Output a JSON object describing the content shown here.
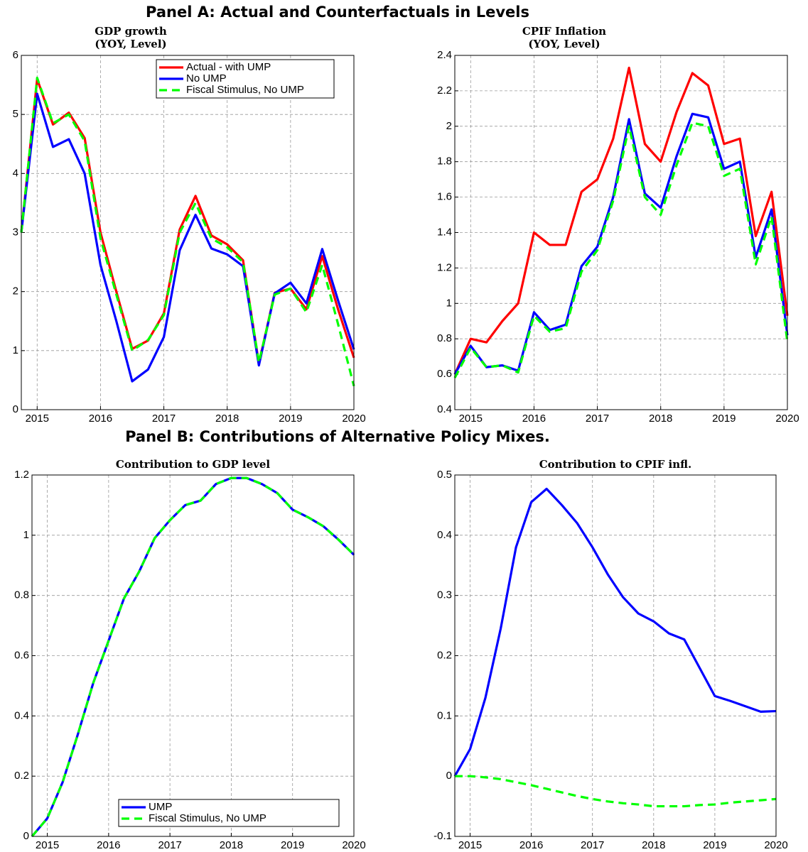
{
  "panel_titles": [
    "Panel A: Actual and Counterfactuals in Levels",
    "Panel B: Contributions of Alternative Policy Mixes."
  ],
  "chart_data": [
    {
      "type": "line",
      "title": "GDP growth",
      "subtitle": "(YOY, Level)",
      "grid": true,
      "legend": "upper right",
      "x": [
        2014.75,
        2015,
        2015.25,
        2015.5,
        2015.75,
        2016,
        2016.25,
        2016.5,
        2016.75,
        2017,
        2017.25,
        2017.5,
        2017.75,
        2018,
        2018.25,
        2018.5,
        2018.75,
        2019,
        2019.25,
        2019.5,
        2019.75,
        2020
      ],
      "xlim": [
        2014.75,
        2020
      ],
      "xticks": [
        2015,
        2016,
        2017,
        2018,
        2019,
        2020
      ],
      "ylim": [
        0,
        6
      ],
      "yticks": [
        0,
        1,
        2,
        3,
        4,
        5,
        6
      ],
      "series": [
        {
          "name": "Actual - with UMP",
          "color": "#ff0000",
          "style": "solid",
          "values": [
            3.0,
            5.6,
            4.83,
            5.03,
            4.6,
            3.0,
            2.0,
            1.03,
            1.17,
            1.63,
            3.05,
            3.62,
            2.95,
            2.8,
            2.53,
            0.78,
            1.98,
            2.05,
            1.7,
            2.6,
            1.7,
            0.88
          ]
        },
        {
          "name": "No UMP",
          "color": "#0000ff",
          "style": "solid",
          "values": [
            3.0,
            5.35,
            4.45,
            4.58,
            4.0,
            2.45,
            1.5,
            0.48,
            0.68,
            1.23,
            2.7,
            3.3,
            2.73,
            2.63,
            2.43,
            0.75,
            1.97,
            2.15,
            1.8,
            2.72,
            1.85,
            1.02
          ]
        },
        {
          "name": "Fiscal Stimulus, No UMP",
          "color": "#00ff00",
          "style": "dashed",
          "values": [
            3.0,
            5.62,
            4.85,
            5.0,
            4.55,
            2.9,
            1.95,
            1.0,
            1.18,
            1.6,
            3.0,
            3.5,
            2.9,
            2.75,
            2.5,
            0.8,
            1.95,
            2.05,
            1.65,
            2.45,
            1.45,
            0.4
          ]
        }
      ]
    },
    {
      "type": "line",
      "title": "CPIF Inflation",
      "subtitle": "(YOY, Level)",
      "grid": true,
      "x": [
        2014.75,
        2015,
        2015.25,
        2015.5,
        2015.75,
        2016,
        2016.25,
        2016.5,
        2016.75,
        2017,
        2017.25,
        2017.5,
        2017.75,
        2018,
        2018.25,
        2018.5,
        2018.75,
        2019,
        2019.25,
        2019.5,
        2019.75,
        2020
      ],
      "xlim": [
        2014.75,
        2020
      ],
      "xticks": [
        2015,
        2016,
        2017,
        2018,
        2019,
        2020
      ],
      "ylim": [
        0.4,
        2.4
      ],
      "yticks": [
        0.4,
        0.6,
        0.8,
        1,
        1.2,
        1.4,
        1.6,
        1.8,
        2,
        2.2,
        2.4
      ],
      "series": [
        {
          "color": "#ff0000",
          "style": "solid",
          "values": [
            0.6,
            0.8,
            0.78,
            0.9,
            1.0,
            1.4,
            1.33,
            1.33,
            1.63,
            1.7,
            1.93,
            2.33,
            1.9,
            1.8,
            2.08,
            2.3,
            2.23,
            1.9,
            1.93,
            1.38,
            1.63,
            0.93
          ]
        },
        {
          "color": "#0000ff",
          "style": "solid",
          "values": [
            0.6,
            0.76,
            0.64,
            0.65,
            0.62,
            0.95,
            0.85,
            0.88,
            1.21,
            1.32,
            1.6,
            2.04,
            1.62,
            1.54,
            1.83,
            2.07,
            2.05,
            1.76,
            1.8,
            1.26,
            1.53,
            0.82
          ]
        },
        {
          "color": "#00ff00",
          "style": "dashed",
          "values": [
            0.58,
            0.75,
            0.64,
            0.65,
            0.61,
            0.93,
            0.84,
            0.86,
            1.18,
            1.3,
            1.58,
            2.0,
            1.6,
            1.5,
            1.78,
            2.02,
            2.0,
            1.72,
            1.76,
            1.22,
            1.49,
            0.78
          ]
        }
      ]
    },
    {
      "type": "line",
      "title": "Contribution to GDP level",
      "grid": true,
      "legend": "lower left",
      "x": [
        2014.75,
        2015,
        2015.25,
        2015.5,
        2015.75,
        2016,
        2016.25,
        2016.5,
        2016.75,
        2017,
        2017.25,
        2017.5,
        2017.75,
        2018,
        2018.25,
        2018.5,
        2018.75,
        2019,
        2019.25,
        2019.5,
        2019.75,
        2020
      ],
      "xlim": [
        2014.75,
        2020
      ],
      "xticks": [
        2015,
        2016,
        2017,
        2018,
        2019,
        2020
      ],
      "ylim": [
        0,
        1.2
      ],
      "yticks": [
        0,
        0.2,
        0.4,
        0.6,
        0.8,
        1,
        1.2
      ],
      "series": [
        {
          "name": "UMP",
          "color": "#0000ff",
          "style": "solid",
          "values": [
            0,
            0.06,
            0.18,
            0.34,
            0.51,
            0.65,
            0.79,
            0.88,
            0.99,
            1.05,
            1.1,
            1.115,
            1.17,
            1.19,
            1.19,
            1.17,
            1.14,
            1.085,
            1.06,
            1.03,
            0.985,
            0.935
          ]
        },
        {
          "name": "Fiscal Stimulus, No UMP",
          "color": "#00ff00",
          "style": "dashed",
          "values": [
            0,
            0.06,
            0.18,
            0.34,
            0.51,
            0.65,
            0.79,
            0.88,
            0.99,
            1.05,
            1.1,
            1.115,
            1.17,
            1.19,
            1.19,
            1.17,
            1.14,
            1.085,
            1.06,
            1.03,
            0.985,
            0.935
          ]
        }
      ]
    },
    {
      "type": "line",
      "title": "Contribution to CPIF infl.",
      "grid": true,
      "x": [
        2014.75,
        2015,
        2015.25,
        2015.5,
        2015.75,
        2016,
        2016.25,
        2016.5,
        2016.75,
        2017,
        2017.25,
        2017.5,
        2017.75,
        2018,
        2018.25,
        2018.5,
        2018.75,
        2019,
        2019.25,
        2019.5,
        2019.75,
        2020
      ],
      "xlim": [
        2014.75,
        2020
      ],
      "xticks": [
        2015,
        2016,
        2017,
        2018,
        2019,
        2020
      ],
      "ylim": [
        -0.1,
        0.5
      ],
      "yticks": [
        -0.1,
        0,
        0.1,
        0.2,
        0.3,
        0.4,
        0.5
      ],
      "series": [
        {
          "color": "#0000ff",
          "style": "solid",
          "values": [
            0,
            0.045,
            0.13,
            0.245,
            0.38,
            0.455,
            0.477,
            0.45,
            0.42,
            0.38,
            0.335,
            0.297,
            0.27,
            0.257,
            0.237,
            0.227,
            0.18,
            0.133,
            0.125,
            0.116,
            0.107,
            0.108
          ]
        },
        {
          "color": "#00ff00",
          "style": "dashed",
          "values": [
            0,
            0,
            -0.002,
            -0.005,
            -0.01,
            -0.015,
            -0.021,
            -0.027,
            -0.033,
            -0.038,
            -0.042,
            -0.045,
            -0.047,
            -0.05,
            -0.05,
            -0.05,
            -0.048,
            -0.047,
            -0.044,
            -0.042,
            -0.04,
            -0.038
          ]
        }
      ]
    }
  ]
}
